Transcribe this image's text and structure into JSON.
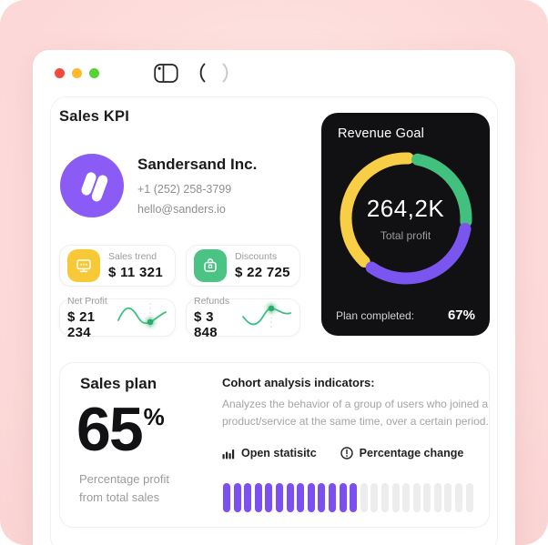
{
  "window": {
    "traffic_lights": [
      {
        "name": "close",
        "color": "#f5493d"
      },
      {
        "name": "minimize",
        "color": "#fdba2c"
      },
      {
        "name": "zoom",
        "color": "#56d232"
      }
    ]
  },
  "header": {
    "title": "Sales KPI"
  },
  "company": {
    "name": "Sandersand Inc.",
    "phone": "+1 (252) 258-3799",
    "email": "hello@sanders.io"
  },
  "kpi": {
    "cards": [
      {
        "label": "Sales trend",
        "value": "$ 11 321",
        "icon": "monitor-icon",
        "accent": "#f7c937"
      },
      {
        "label": "Discounts",
        "value": "$ 22 725",
        "icon": "briefcase-icon",
        "accent": "#4ac385"
      },
      {
        "label": "Net Profit",
        "value": "$ 21 234",
        "icon": "sparkline",
        "accent": "#3fbf7f"
      },
      {
        "label": "Refunds",
        "value": "$ 3 848",
        "icon": "sparkline",
        "accent": "#3fbf7f"
      }
    ]
  },
  "revenue_goal": {
    "title": "Revenue Goal",
    "total": "264,2K",
    "total_label": "Total profit",
    "plan_label": "Plan completed:",
    "plan_value": "67%",
    "chart": {
      "type": "donut",
      "completed_percent": 67,
      "segments": [
        {
          "name": "yellow",
          "color": "#f8ce46",
          "start_deg": 224,
          "end_deg": 362
        },
        {
          "name": "green",
          "color": "#41c07e",
          "start_deg": 11,
          "end_deg": 93
        },
        {
          "name": "purple",
          "color": "#7a55f0",
          "start_deg": 100,
          "end_deg": 215
        }
      ]
    }
  },
  "sales_plan": {
    "title": "Sales plan",
    "percent": "65",
    "percent_sign": "%",
    "caption_line1": "Percentage profit",
    "caption_line2": "from total sales",
    "cohort_heading": "Cohort analysis indicators:",
    "cohort_text": "Analyzes the behavior of a group of users who joined a product/service at the same time, over a certain period.",
    "actions": [
      {
        "label": "Open statisitc",
        "icon": "bar-chart-icon"
      },
      {
        "label": "Percentage change",
        "icon": "alert-circle-icon"
      }
    ],
    "bars": {
      "total": 24,
      "filled": 13,
      "fill_color": "#7c4ff0",
      "empty_color": "#ededed"
    }
  }
}
